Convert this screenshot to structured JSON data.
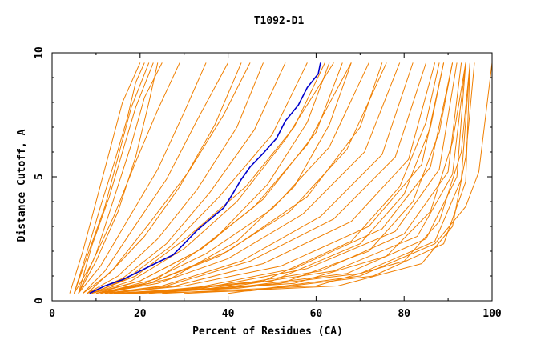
{
  "chart_data": {
    "type": "line",
    "title": "T1092-D1",
    "xlabel": "Percent of Residues (CA)",
    "ylabel": "Distance Cutoff, A",
    "xlim": [
      0,
      100
    ],
    "ylim": [
      0,
      10
    ],
    "xticks": [
      0,
      20,
      40,
      60,
      80,
      100
    ],
    "yticks": [
      0,
      5,
      10
    ],
    "grid": false,
    "legend": "none",
    "colors": {
      "others": "#f07f00",
      "highlight": "#0000cc"
    },
    "highlight_series": {
      "x": [
        8.5,
        12,
        16,
        20,
        24,
        27.5,
        30,
        33,
        36,
        39,
        41,
        43,
        45,
        48,
        51,
        53,
        56,
        58,
        60.5,
        61
      ],
      "y": [
        0.3,
        0.6,
        0.85,
        1.2,
        1.55,
        1.85,
        2.3,
        2.85,
        3.3,
        3.75,
        4.3,
        4.9,
        5.4,
        5.95,
        6.55,
        7.25,
        7.9,
        8.6,
        9.15,
        9.6
      ]
    },
    "series": [
      {
        "x": [
          4,
          7,
          10,
          13,
          16,
          20
        ],
        "y": [
          0.3,
          2.0,
          4.0,
          6.0,
          8.0,
          9.6
        ]
      },
      {
        "x": [
          5,
          8,
          11,
          14,
          17,
          19,
          21
        ],
        "y": [
          0.3,
          2.0,
          3.8,
          5.5,
          7.3,
          8.8,
          9.6
        ]
      },
      {
        "x": [
          5,
          8,
          12,
          15,
          18,
          22
        ],
        "y": [
          0.3,
          1.8,
          3.8,
          5.8,
          7.8,
          9.6
        ]
      },
      {
        "x": [
          6,
          9,
          13,
          16,
          19,
          23
        ],
        "y": [
          0.3,
          2.2,
          4.2,
          6.0,
          7.8,
          9.6
        ]
      },
      {
        "x": [
          6,
          10,
          15,
          19,
          22,
          24
        ],
        "y": [
          0.3,
          1.6,
          3.6,
          5.8,
          8.0,
          9.6
        ]
      },
      {
        "x": [
          5,
          9,
          14,
          19,
          24,
          29
        ],
        "y": [
          0.3,
          1.5,
          3.4,
          5.6,
          7.7,
          9.6
        ]
      },
      {
        "x": [
          6,
          11,
          17,
          24,
          30,
          35
        ],
        "y": [
          0.3,
          1.4,
          3.2,
          5.3,
          7.6,
          9.6
        ]
      },
      {
        "x": [
          7,
          12,
          18,
          26,
          33,
          40
        ],
        "y": [
          0.3,
          1.2,
          2.8,
          4.9,
          7.3,
          9.6
        ]
      },
      {
        "x": [
          7,
          13,
          21,
          29,
          37,
          43
        ],
        "y": [
          0.3,
          1.1,
          2.6,
          4.6,
          7.1,
          9.6
        ]
      },
      {
        "x": [
          8,
          15,
          24,
          33,
          42,
          48
        ],
        "y": [
          0.3,
          1.0,
          2.5,
          4.5,
          7.0,
          9.6
        ]
      },
      {
        "x": [
          8,
          16,
          26,
          36,
          46,
          53
        ],
        "y": [
          0.3,
          0.9,
          2.3,
          4.4,
          6.9,
          9.6
        ]
      },
      {
        "x": [
          9,
          17,
          27,
          38,
          50,
          58
        ],
        "y": [
          0.3,
          0.9,
          2.2,
          4.2,
          6.7,
          9.6
        ]
      },
      {
        "x": [
          9,
          18,
          30,
          42,
          53,
          64
        ],
        "y": [
          0.3,
          0.8,
          2.1,
          4.0,
          6.5,
          9.6
        ]
      },
      {
        "x": [
          10,
          20,
          33,
          46,
          58,
          68
        ],
        "y": [
          0.3,
          0.8,
          2.0,
          3.8,
          6.3,
          9.6
        ]
      },
      {
        "x": [
          10,
          21,
          35,
          50,
          63,
          72
        ],
        "y": [
          0.3,
          0.7,
          1.9,
          3.7,
          6.2,
          9.6
        ]
      },
      {
        "x": [
          11,
          22,
          38,
          54,
          67,
          76
        ],
        "y": [
          0.3,
          0.7,
          1.8,
          3.6,
          6.1,
          9.6
        ]
      },
      {
        "x": [
          11,
          24,
          40,
          57,
          71,
          79
        ],
        "y": [
          0.3,
          0.7,
          1.7,
          3.5,
          6.0,
          9.6
        ]
      },
      {
        "x": [
          12,
          25,
          43,
          61,
          75,
          82
        ],
        "y": [
          0.3,
          0.6,
          1.6,
          3.4,
          5.9,
          9.6
        ]
      },
      {
        "x": [
          12,
          26,
          45,
          64,
          78,
          85
        ],
        "y": [
          0.3,
          0.6,
          1.6,
          3.3,
          5.8,
          9.6
        ]
      },
      {
        "x": [
          13,
          28,
          48,
          68,
          81,
          87
        ],
        "y": [
          0.3,
          0.6,
          1.5,
          3.2,
          5.7,
          9.6
        ]
      },
      {
        "x": [
          13,
          30,
          52,
          72,
          84,
          89
        ],
        "y": [
          0.3,
          0.6,
          1.4,
          3.0,
          5.5,
          9.6
        ]
      },
      {
        "x": [
          14,
          32,
          55,
          75,
          86,
          91
        ],
        "y": [
          0.3,
          0.5,
          1.3,
          2.9,
          5.4,
          9.6
        ]
      },
      {
        "x": [
          14,
          34,
          58,
          78,
          88,
          92
        ],
        "y": [
          0.3,
          0.5,
          1.3,
          2.8,
          5.3,
          9.6
        ]
      },
      {
        "x": [
          15,
          36,
          61,
          80,
          90,
          93
        ],
        "y": [
          0.3,
          0.5,
          1.2,
          2.7,
          5.2,
          9.6
        ]
      },
      {
        "x": [
          15,
          38,
          64,
          83,
          91,
          94
        ],
        "y": [
          0.3,
          0.5,
          1.2,
          2.6,
          5.1,
          9.6
        ]
      },
      {
        "x": [
          16,
          40,
          67,
          85,
          92,
          94
        ],
        "y": [
          0.3,
          0.5,
          1.1,
          2.5,
          5.0,
          9.6
        ]
      },
      {
        "x": [
          16,
          42,
          70,
          87,
          93,
          95
        ],
        "y": [
          0.3,
          0.5,
          1.1,
          2.4,
          4.9,
          9.6
        ]
      },
      {
        "x": [
          17,
          45,
          73,
          89,
          94,
          95
        ],
        "y": [
          0.3,
          0.4,
          1.0,
          2.3,
          4.8,
          9.6
        ]
      },
      {
        "x": [
          9,
          19,
          31,
          44,
          55,
          62
        ],
        "y": [
          0.3,
          1.0,
          2.6,
          4.6,
          7.0,
          9.6
        ]
      },
      {
        "x": [
          8,
          14,
          22,
          31,
          39,
          45
        ],
        "y": [
          0.3,
          1.3,
          3.1,
          5.2,
          7.5,
          9.6
        ]
      },
      {
        "x": [
          6,
          10,
          14,
          18,
          21,
          25
        ],
        "y": [
          0.3,
          1.9,
          4.1,
          6.3,
          8.2,
          9.6
        ]
      },
      {
        "x": [
          20,
          50,
          70,
          80,
          86,
          89
        ],
        "y": [
          0.3,
          0.8,
          2.3,
          4.3,
          7.0,
          9.6
        ]
      },
      {
        "x": [
          20,
          52,
          72,
          82,
          88,
          91
        ],
        "y": [
          0.3,
          0.7,
          2.0,
          4.0,
          6.8,
          9.6
        ]
      },
      {
        "x": [
          18,
          48,
          68,
          79,
          85,
          88
        ],
        "y": [
          0.3,
          0.8,
          2.4,
          4.6,
          7.2,
          9.6
        ]
      },
      {
        "x": [
          12,
          27,
          42,
          55,
          63,
          68
        ],
        "y": [
          0.3,
          0.9,
          2.4,
          4.6,
          7.1,
          9.6
        ]
      },
      {
        "x": [
          11,
          24,
          37,
          49,
          58,
          63
        ],
        "y": [
          0.3,
          0.9,
          2.5,
          4.7,
          7.2,
          9.6
        ]
      },
      {
        "x": [
          25,
          60,
          80,
          88,
          93,
          95
        ],
        "y": [
          0.3,
          0.6,
          1.6,
          3.2,
          6.0,
          9.6
        ]
      },
      {
        "x": [
          30,
          65,
          84,
          91,
          94,
          96
        ],
        "y": [
          0.3,
          0.6,
          1.5,
          3.0,
          5.8,
          9.6
        ]
      },
      {
        "x": [
          22,
          55,
          76,
          86,
          91,
          94
        ],
        "y": [
          0.3,
          0.7,
          1.8,
          3.6,
          6.4,
          9.6
        ]
      },
      {
        "x": [
          10,
          22,
          40,
          58,
          70,
          75
        ],
        "y": [
          0.3,
          0.7,
          2.0,
          4.2,
          7.0,
          9.6
        ]
      },
      {
        "x": [
          9,
          20,
          34,
          48,
          60,
          66
        ],
        "y": [
          0.3,
          0.8,
          2.1,
          4.1,
          6.8,
          9.6
        ]
      },
      {
        "x": [
          40,
          70,
          87,
          94,
          97,
          100
        ],
        "y": [
          0.3,
          1.0,
          2.3,
          3.8,
          5.2,
          9.6
        ]
      }
    ]
  }
}
